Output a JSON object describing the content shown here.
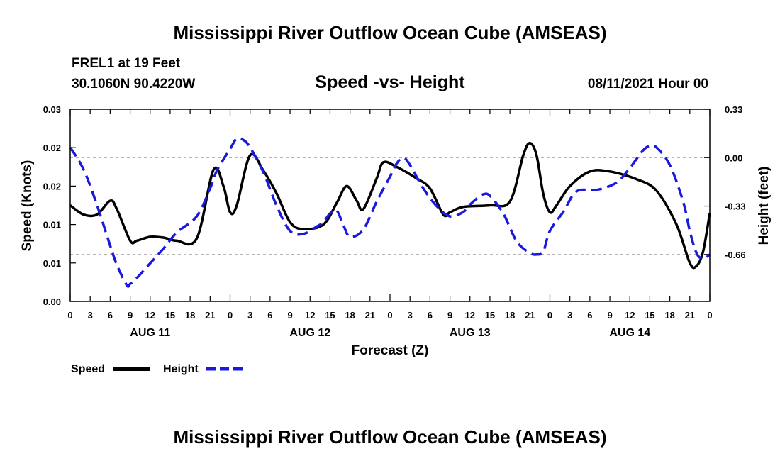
{
  "header": {
    "title_top": "Mississippi River Outflow Ocean Cube (AMSEAS)",
    "title_bottom": "Mississippi River Outflow Ocean Cube (AMSEAS)",
    "station": "FREL1 at 19 Feet",
    "location": "30.1060N  90.4220W",
    "datetime": "08/11/2021 Hour 00"
  },
  "chart_data": {
    "type": "line",
    "title": "Speed -vs- Height",
    "xlabel": "Forecast (Z)",
    "ylabel_left": "Speed (Knots)",
    "ylabel_right": "Height (feet)",
    "x_tick_labels": [
      "0",
      "3",
      "6",
      "9",
      "12",
      "15",
      "18",
      "21",
      "0",
      "3",
      "6",
      "9",
      "12",
      "15",
      "18",
      "21",
      "0",
      "3",
      "6",
      "9",
      "12",
      "15",
      "18",
      "21",
      "0",
      "3",
      "6",
      "9",
      "12",
      "15",
      "18",
      "21",
      "0"
    ],
    "day_labels": [
      {
        "label": "AUG 11",
        "hour": 12
      },
      {
        "label": "AUG 12",
        "hour": 36
      },
      {
        "label": "AUG 13",
        "hour": 60
      },
      {
        "label": "AUG 14",
        "hour": 84
      }
    ],
    "x_range_hours": [
      0,
      96
    ],
    "left_ticks": {
      "values": [
        0,
        0.005,
        0.01,
        0.015,
        0.02,
        0.025
      ],
      "labels": [
        "0.00",
        "0.01",
        "0.01",
        "0.02",
        "0.02",
        "0.03"
      ]
    },
    "right_ticks": {
      "values": [
        0.33,
        0.0,
        -0.33,
        -0.66
      ],
      "labels": [
        "0.33",
        "0.00",
        "-0.33",
        "-0.66"
      ]
    },
    "ylim_left": [
      0,
      0.025
    ],
    "ylim_right": [
      -0.98,
      0.33
    ],
    "series": [
      {
        "name": "Speed",
        "axis": "left",
        "color": "#000000",
        "style": "solid",
        "points": [
          [
            0,
            0.0125
          ],
          [
            2,
            0.0113
          ],
          [
            4,
            0.0113
          ],
          [
            6,
            0.0131
          ],
          [
            7,
            0.012
          ],
          [
            9,
            0.0079
          ],
          [
            10,
            0.0079
          ],
          [
            12,
            0.0084
          ],
          [
            14,
            0.0083
          ],
          [
            16,
            0.0079
          ],
          [
            19,
            0.0082
          ],
          [
            21.5,
            0.0171
          ],
          [
            23,
            0.015
          ],
          [
            24,
            0.0116
          ],
          [
            25,
            0.0125
          ],
          [
            27,
            0.019
          ],
          [
            29,
            0.017
          ],
          [
            31,
            0.014
          ],
          [
            33,
            0.0103
          ],
          [
            35,
            0.0094
          ],
          [
            38,
            0.01
          ],
          [
            40,
            0.0128
          ],
          [
            41.5,
            0.015
          ],
          [
            43,
            0.0131
          ],
          [
            44,
            0.012
          ],
          [
            46,
            0.016
          ],
          [
            47,
            0.0181
          ],
          [
            49,
            0.0175
          ],
          [
            52,
            0.016
          ],
          [
            54,
            0.0147
          ],
          [
            56,
            0.0113
          ],
          [
            57,
            0.0116
          ],
          [
            59,
            0.0123
          ],
          [
            63,
            0.0125
          ],
          [
            66,
            0.013
          ],
          [
            68,
            0.019
          ],
          [
            69,
            0.0206
          ],
          [
            70,
            0.019
          ],
          [
            71,
            0.014
          ],
          [
            72,
            0.0116
          ],
          [
            73,
            0.0125
          ],
          [
            75,
            0.015
          ],
          [
            78,
            0.0169
          ],
          [
            81,
            0.0169
          ],
          [
            85,
            0.0159
          ],
          [
            88,
            0.0144
          ],
          [
            91,
            0.01
          ],
          [
            93,
            0.005
          ],
          [
            94,
            0.0046
          ],
          [
            95,
            0.0065
          ],
          [
            96,
            0.0115
          ]
        ]
      },
      {
        "name": "Height",
        "axis": "right",
        "color": "#1a1adc",
        "style": "dashed",
        "points": [
          [
            0,
            0.07
          ],
          [
            2,
            -0.08
          ],
          [
            4,
            -0.32
          ],
          [
            6,
            -0.6
          ],
          [
            7,
            -0.73
          ],
          [
            8.5,
            -0.87
          ],
          [
            9,
            -0.86
          ],
          [
            10,
            -0.82
          ],
          [
            12,
            -0.72
          ],
          [
            14,
            -0.62
          ],
          [
            16,
            -0.51
          ],
          [
            19,
            -0.4
          ],
          [
            21,
            -0.21
          ],
          [
            22,
            -0.09
          ],
          [
            24,
            0.06
          ],
          [
            25,
            0.13
          ],
          [
            26,
            0.12
          ],
          [
            27,
            0.07
          ],
          [
            29,
            -0.1
          ],
          [
            31,
            -0.33
          ],
          [
            33,
            -0.5
          ],
          [
            35,
            -0.52
          ],
          [
            37,
            -0.47
          ],
          [
            38,
            -0.44
          ],
          [
            39,
            -0.38
          ],
          [
            40,
            -0.36
          ],
          [
            41,
            -0.46
          ],
          [
            42,
            -0.54
          ],
          [
            44,
            -0.49
          ],
          [
            46,
            -0.3
          ],
          [
            48,
            -0.13
          ],
          [
            49,
            -0.04
          ],
          [
            50,
            0.0
          ],
          [
            51,
            -0.05
          ],
          [
            53,
            -0.21
          ],
          [
            55,
            -0.33
          ],
          [
            57,
            -0.4
          ],
          [
            59,
            -0.37
          ],
          [
            60,
            -0.32
          ],
          [
            61,
            -0.28
          ],
          [
            62,
            -0.25
          ],
          [
            63,
            -0.26
          ],
          [
            65,
            -0.38
          ],
          [
            67,
            -0.57
          ],
          [
            69,
            -0.65
          ],
          [
            70,
            -0.66
          ],
          [
            71,
            -0.64
          ],
          [
            72,
            -0.5
          ],
          [
            74,
            -0.37
          ],
          [
            76,
            -0.23
          ],
          [
            79,
            -0.22
          ],
          [
            82,
            -0.17
          ],
          [
            84,
            -0.07
          ],
          [
            86,
            0.05
          ],
          [
            87,
            0.08
          ],
          [
            88,
            0.07
          ],
          [
            90,
            -0.05
          ],
          [
            92,
            -0.3
          ],
          [
            93,
            -0.5
          ],
          [
            94,
            -0.65
          ],
          [
            95,
            -0.69
          ],
          [
            96,
            -0.66
          ]
        ]
      }
    ],
    "legend": [
      {
        "label": "Speed",
        "color": "#000000",
        "style": "solid"
      },
      {
        "label": "Height",
        "color": "#1a1adc",
        "style": "dashed"
      }
    ]
  }
}
